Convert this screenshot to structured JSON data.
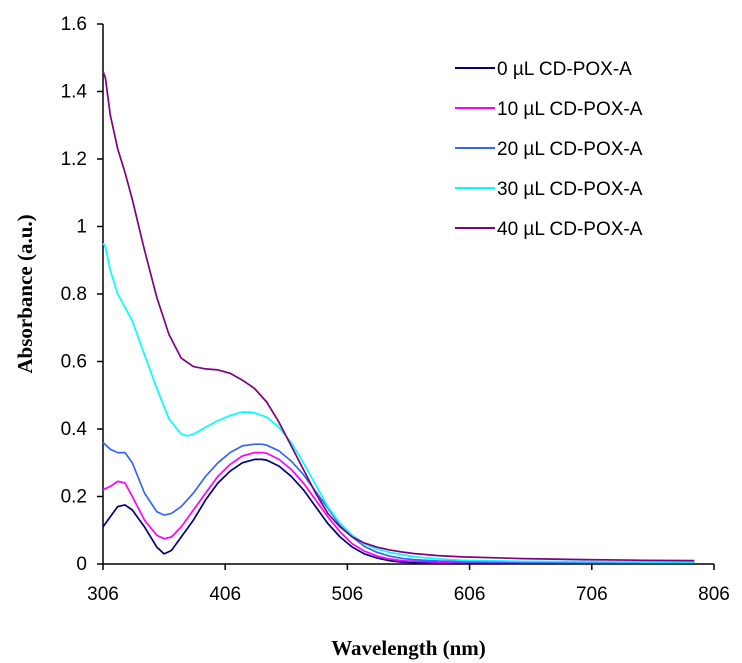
{
  "chart_data": {
    "type": "line",
    "xlabel": "Wavelength (nm)",
    "ylabel": "Absorbance (a.u.)",
    "xlim": [
      306,
      806
    ],
    "ylim": [
      0,
      1.6
    ],
    "xticks": [
      306,
      406,
      506,
      606,
      706,
      806
    ],
    "yticks": [
      0,
      0.2,
      0.4,
      0.6,
      0.8,
      1,
      1.2,
      1.4,
      1.6
    ],
    "ytick_labels": [
      "0",
      "0.2",
      "0.4",
      "0.6",
      "0.8",
      "1",
      "1.2",
      "1.4",
      "1.6"
    ],
    "grid": false,
    "legend_position": "top-right",
    "series": [
      {
        "name": "0 µL CD-POX-A",
        "color": "#000080",
        "x": [
          306,
          312,
          318,
          324,
          330,
          340,
          350,
          356,
          362,
          370,
          380,
          390,
          400,
          410,
          420,
          430,
          436,
          440,
          450,
          460,
          470,
          480,
          490,
          500,
          510,
          520,
          530,
          540,
          550,
          560,
          580,
          600,
          650,
          700,
          750,
          790
        ],
        "y": [
          0.11,
          0.14,
          0.17,
          0.175,
          0.16,
          0.11,
          0.05,
          0.03,
          0.04,
          0.08,
          0.13,
          0.19,
          0.24,
          0.275,
          0.3,
          0.31,
          0.31,
          0.308,
          0.29,
          0.26,
          0.22,
          0.17,
          0.12,
          0.08,
          0.05,
          0.03,
          0.018,
          0.01,
          0.006,
          0.004,
          0.003,
          0.002,
          0.002,
          0.002,
          0.002,
          0.002
        ]
      },
      {
        "name": "10 µL CD-POX-A",
        "color": "#ff00ff",
        "x": [
          306,
          312,
          318,
          324,
          330,
          340,
          350,
          356,
          362,
          370,
          380,
          390,
          400,
          410,
          420,
          430,
          436,
          440,
          450,
          460,
          470,
          480,
          490,
          500,
          510,
          520,
          530,
          540,
          550,
          560,
          580,
          600,
          650,
          700,
          750,
          790
        ],
        "y": [
          0.22,
          0.23,
          0.245,
          0.24,
          0.2,
          0.13,
          0.085,
          0.075,
          0.08,
          0.11,
          0.16,
          0.21,
          0.26,
          0.295,
          0.32,
          0.33,
          0.33,
          0.328,
          0.31,
          0.28,
          0.24,
          0.19,
          0.14,
          0.095,
          0.06,
          0.038,
          0.024,
          0.015,
          0.01,
          0.008,
          0.006,
          0.005,
          0.004,
          0.004,
          0.004,
          0.004
        ]
      },
      {
        "name": "20 µL CD-POX-A",
        "color": "#3366ff",
        "x": [
          306,
          312,
          318,
          324,
          330,
          340,
          350,
          356,
          362,
          370,
          380,
          390,
          400,
          410,
          420,
          430,
          436,
          440,
          450,
          460,
          470,
          480,
          490,
          500,
          510,
          520,
          530,
          540,
          550,
          560,
          580,
          600,
          650,
          700,
          750,
          790
        ],
        "y": [
          0.36,
          0.34,
          0.33,
          0.33,
          0.3,
          0.21,
          0.155,
          0.145,
          0.15,
          0.17,
          0.21,
          0.26,
          0.3,
          0.33,
          0.35,
          0.355,
          0.355,
          0.352,
          0.335,
          0.305,
          0.265,
          0.215,
          0.165,
          0.115,
          0.08,
          0.052,
          0.035,
          0.024,
          0.017,
          0.013,
          0.009,
          0.007,
          0.006,
          0.006,
          0.006,
          0.006
        ]
      },
      {
        "name": "30 µL CD-POX-A",
        "color": "#00ffff",
        "x": [
          306,
          308,
          312,
          318,
          324,
          330,
          340,
          350,
          360,
          370,
          375,
          380,
          390,
          400,
          410,
          420,
          426,
          430,
          440,
          450,
          460,
          470,
          480,
          490,
          500,
          510,
          520,
          530,
          540,
          550,
          560,
          580,
          600,
          650,
          700,
          750,
          790
        ],
        "y": [
          0.95,
          0.94,
          0.87,
          0.8,
          0.76,
          0.72,
          0.62,
          0.52,
          0.43,
          0.385,
          0.38,
          0.385,
          0.405,
          0.425,
          0.44,
          0.45,
          0.45,
          0.448,
          0.435,
          0.405,
          0.36,
          0.3,
          0.235,
          0.17,
          0.12,
          0.085,
          0.06,
          0.045,
          0.035,
          0.028,
          0.022,
          0.015,
          0.011,
          0.008,
          0.007,
          0.006,
          0.006
        ]
      },
      {
        "name": "40 µL CD-POX-A",
        "color": "#800080",
        "x": [
          306,
          308,
          312,
          318,
          324,
          330,
          340,
          350,
          360,
          370,
          380,
          390,
          400,
          410,
          420,
          426,
          430,
          440,
          450,
          460,
          470,
          480,
          490,
          500,
          510,
          520,
          530,
          540,
          550,
          560,
          580,
          600,
          650,
          700,
          750,
          790
        ],
        "y": [
          1.46,
          1.44,
          1.33,
          1.23,
          1.16,
          1.08,
          0.93,
          0.79,
          0.68,
          0.61,
          0.585,
          0.578,
          0.575,
          0.565,
          0.545,
          0.53,
          0.52,
          0.48,
          0.42,
          0.35,
          0.28,
          0.21,
          0.15,
          0.11,
          0.08,
          0.062,
          0.05,
          0.042,
          0.036,
          0.031,
          0.025,
          0.021,
          0.016,
          0.013,
          0.011,
          0.01
        ]
      }
    ]
  }
}
